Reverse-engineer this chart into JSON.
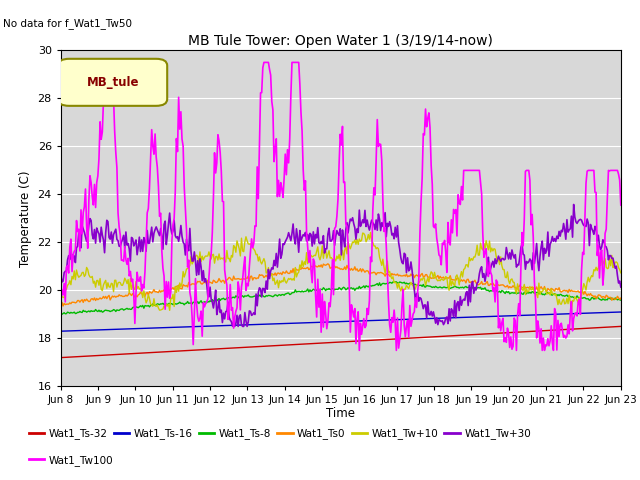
{
  "title": "MB Tule Tower: Open Water 1 (3/19/14-now)",
  "no_data_text": "No data for f_Wat1_Tw50",
  "xlabel": "Time",
  "ylabel": "Temperature (C)",
  "ylim": [
    16,
    30
  ],
  "xlim": [
    0,
    15
  ],
  "yticks": [
    16,
    18,
    20,
    22,
    24,
    26,
    28,
    30
  ],
  "xtick_labels": [
    "Jun 8",
    "Jun 9",
    "Jun 10",
    "Jun 11",
    "Jun 12",
    "Jun 13",
    "Jun 14",
    "Jun 15",
    "Jun 16",
    "Jun 17",
    "Jun 18",
    "Jun 19",
    "Jun 20",
    "Jun 21",
    "Jun 22",
    "Jun 23"
  ],
  "bg_color": "#f0f0f0",
  "plot_bg": "#dcdcdc",
  "legend_box_color": "#ffffcc",
  "legend_box_text": "MB_tule",
  "series_colors": {
    "Wat1_Ts-32": "#cc0000",
    "Wat1_Ts-16": "#0000cc",
    "Wat1_Ts-8": "#00bb00",
    "Wat1_Ts0": "#ff8800",
    "Wat1_Tw+10": "#cccc00",
    "Wat1_Tw+30": "#8800cc",
    "Wat1_Tw100": "#ff00ff"
  },
  "n_points": 500
}
